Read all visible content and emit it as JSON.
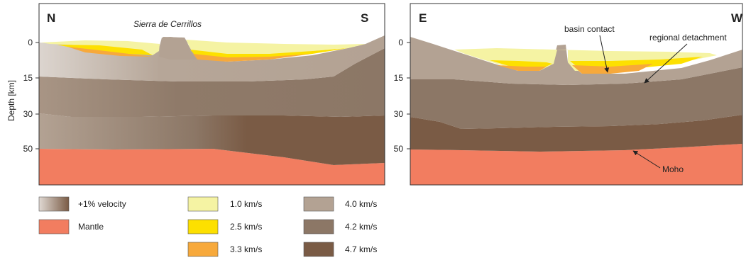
{
  "left_panel": {
    "dir_left": "N",
    "dir_right": "S",
    "feature_label": "Sierra de Cerrillos",
    "axis_label": "Depth [km]",
    "ticks": [
      "0",
      "15",
      "30",
      "50"
    ]
  },
  "right_panel": {
    "dir_left": "E",
    "dir_right": "W",
    "ticks": [
      "0",
      "15",
      "30",
      "50"
    ],
    "annotations": {
      "basin_contact": "basin contact",
      "regional_detachment": "regional detachment",
      "moho": "Moho"
    }
  },
  "legend": [
    {
      "label": "+1% velocity",
      "color": "gradient"
    },
    {
      "label": "Mantle",
      "color": "#f27d60"
    },
    {
      "label": "1.0 km/s",
      "color": "#f5f3a3"
    },
    {
      "label": "2.5 km/s",
      "color": "#fde000"
    },
    {
      "label": "3.3 km/s",
      "color": "#f7a93b"
    },
    {
      "label": "4.0 km/s",
      "color": "#b3a293"
    },
    {
      "label": "4.2 km/s",
      "color": "#8c7766"
    },
    {
      "label": "4.7 km/s",
      "color": "#7a5b45"
    }
  ],
  "colors": {
    "mantle": "#f27d60",
    "v1_0": "#f5f3a3",
    "v2_5": "#fde000",
    "v3_3": "#f7a93b",
    "v4_0": "#b3a293",
    "v4_2": "#8c7766",
    "v4_7": "#7a5b45"
  }
}
